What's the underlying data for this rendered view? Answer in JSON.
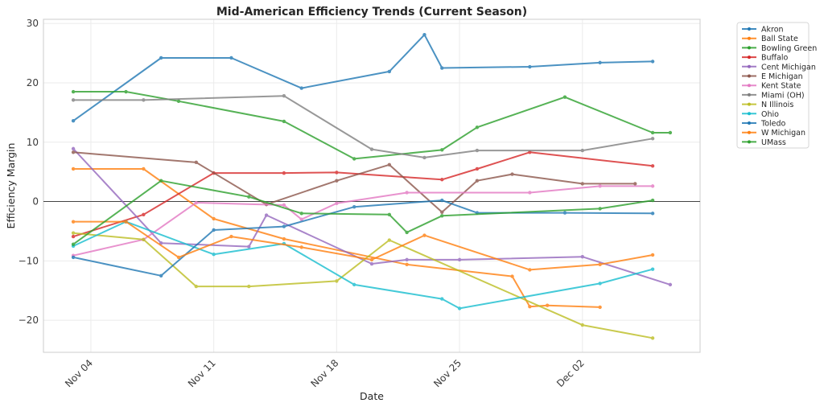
{
  "chart_data": {
    "type": "line",
    "title": "Mid-American Efficiency Trends (Current Season)",
    "xlabel": "Date",
    "ylabel": "Efficiency Margin",
    "x_ticks": [
      "Nov 04",
      "Nov 11",
      "Nov 18",
      "Nov 25",
      "Dec 02"
    ],
    "x_tick_days": [
      4,
      11,
      18,
      25,
      32
    ],
    "x_day_origin": "Nov 00",
    "xlim_days": [
      1.3,
      38.7
    ],
    "y_ticks": [
      -20,
      -10,
      0,
      10,
      20,
      30
    ],
    "ylim": [
      -25.4,
      30.7
    ],
    "grid": true,
    "reference_line_y": 0,
    "legend_position": "outside-right-top",
    "series": [
      {
        "name": "Akron",
        "color": "#1f77b4",
        "x": [
          "Nov 03",
          "Nov 08",
          "Nov 12",
          "Nov 16",
          "Nov 21",
          "Nov 23",
          "Nov 24",
          "Nov 29",
          "Dec 03",
          "Dec 06"
        ],
        "days": [
          3,
          8,
          12,
          16,
          21,
          23,
          24,
          29,
          33,
          36
        ],
        "values": [
          13.6,
          24.2,
          24.2,
          19.1,
          21.9,
          28.1,
          22.5,
          22.7,
          23.4,
          23.6
        ]
      },
      {
        "name": "Ball State",
        "color": "#ff7f0e",
        "x": [
          "Nov 03",
          "Nov 07",
          "Nov 11",
          "Nov 15",
          "Nov 22",
          "Nov 28",
          "Nov 29",
          "Nov 30",
          "Dec 03"
        ],
        "days": [
          3,
          7,
          11,
          15,
          22,
          28,
          29,
          30,
          33
        ],
        "values": [
          5.5,
          5.5,
          -2.9,
          -6.3,
          -10.6,
          -12.6,
          -17.7,
          -17.5,
          -17.8
        ]
      },
      {
        "name": "Bowling Green",
        "color": "#2ca02c",
        "x": [
          "Nov 03",
          "Nov 06",
          "Nov 09",
          "Nov 15",
          "Nov 19",
          "Nov 24",
          "Nov 26",
          "Dec 01",
          "Dec 06",
          "Dec 07"
        ],
        "days": [
          3,
          6,
          9,
          15,
          19,
          24,
          26,
          31,
          36,
          37
        ],
        "values": [
          18.5,
          18.5,
          16.9,
          13.5,
          7.2,
          8.7,
          12.5,
          17.6,
          11.6,
          11.6
        ]
      },
      {
        "name": "Buffalo",
        "color": "#d62728",
        "x": [
          "Nov 03",
          "Nov 07",
          "Nov 11",
          "Nov 15",
          "Nov 18",
          "Nov 24",
          "Nov 26",
          "Nov 29",
          "Dec 06"
        ],
        "days": [
          3,
          7,
          11,
          15,
          18,
          24,
          26,
          29,
          36
        ],
        "values": [
          -5.9,
          -2.2,
          4.8,
          4.8,
          4.9,
          3.7,
          5.5,
          8.3,
          6.0
        ]
      },
      {
        "name": "Cent Michigan",
        "color": "#9467bd",
        "x": [
          "Nov 03",
          "Nov 08",
          "Nov 13",
          "Nov 14",
          "Nov 20",
          "Nov 22",
          "Nov 25",
          "Dec 02",
          "Dec 07"
        ],
        "days": [
          3,
          8,
          13,
          14,
          20,
          22,
          25,
          32,
          37
        ],
        "values": [
          8.9,
          -7.0,
          -7.6,
          -2.3,
          -10.5,
          -9.8,
          -9.8,
          -9.3,
          -14.0
        ]
      },
      {
        "name": "E Michigan",
        "color": "#8c564b",
        "x": [
          "Nov 03",
          "Nov 10",
          "Nov 14",
          "Nov 18",
          "Nov 21",
          "Nov 24",
          "Nov 26",
          "Nov 28",
          "Dec 02",
          "Dec 05"
        ],
        "days": [
          3,
          10,
          14,
          18,
          21,
          24,
          26,
          28,
          32,
          35
        ],
        "values": [
          8.3,
          6.6,
          -0.5,
          3.5,
          6.2,
          -1.8,
          3.5,
          4.6,
          3.0,
          3.0
        ]
      },
      {
        "name": "Kent State",
        "color": "#e377c2",
        "x": [
          "Nov 03",
          "Nov 07",
          "Nov 10",
          "Nov 15",
          "Nov 16",
          "Nov 18",
          "Nov 22",
          "Nov 29",
          "Dec 03",
          "Dec 06"
        ],
        "days": [
          3,
          7,
          10,
          15,
          16,
          18,
          22,
          29,
          33,
          36
        ],
        "values": [
          -9.1,
          -6.4,
          -0.2,
          -0.6,
          -3.0,
          -0.3,
          1.5,
          1.5,
          2.6,
          2.6
        ]
      },
      {
        "name": "Miami (OH)",
        "color": "#7f7f7f",
        "x": [
          "Nov 03",
          "Nov 07",
          "Nov 15",
          "Nov 20",
          "Nov 23",
          "Nov 26",
          "Dec 02",
          "Dec 06"
        ],
        "days": [
          3,
          7,
          15,
          20,
          23,
          26,
          32,
          36
        ],
        "values": [
          17.1,
          17.1,
          17.8,
          8.8,
          7.4,
          8.6,
          8.6,
          10.6
        ]
      },
      {
        "name": "N Illinois",
        "color": "#bcbd22",
        "x": [
          "Nov 03",
          "Nov 07",
          "Nov 10",
          "Nov 13",
          "Nov 18",
          "Nov 21",
          "Dec 02",
          "Dec 06"
        ],
        "days": [
          3,
          7,
          10,
          13,
          18,
          21,
          32,
          36
        ],
        "values": [
          -5.3,
          -6.4,
          -14.3,
          -14.3,
          -13.4,
          -6.5,
          -20.8,
          -23.0
        ]
      },
      {
        "name": "Ohio",
        "color": "#17becf",
        "x": [
          "Nov 03",
          "Nov 06",
          "Nov 11",
          "Nov 15",
          "Nov 19",
          "Nov 24",
          "Nov 25",
          "Dec 03",
          "Dec 06"
        ],
        "days": [
          3,
          6,
          11,
          15,
          19,
          24,
          25,
          33,
          36
        ],
        "values": [
          -7.5,
          -3.4,
          -8.9,
          -7.1,
          -14.0,
          -16.4,
          -18.0,
          -13.8,
          -11.4
        ]
      },
      {
        "name": "Toledo",
        "color": "#1f77b4",
        "x": [
          "Nov 03",
          "Nov 08",
          "Nov 11",
          "Nov 15",
          "Nov 19",
          "Nov 24",
          "Nov 26",
          "Dec 01",
          "Dec 06"
        ],
        "days": [
          3,
          8,
          11,
          15,
          19,
          24,
          26,
          31,
          36
        ],
        "values": [
          -9.4,
          -12.5,
          -4.8,
          -4.2,
          -0.9,
          0.2,
          -1.9,
          -1.9,
          -2.0
        ]
      },
      {
        "name": "W Michigan",
        "color": "#ff7f0e",
        "x": [
          "Nov 03",
          "Nov 06",
          "Nov 09",
          "Nov 12",
          "Nov 16",
          "Nov 20",
          "Nov 23",
          "Nov 29",
          "Dec 03",
          "Dec 06"
        ],
        "days": [
          3,
          6,
          9,
          12,
          16,
          20,
          23,
          29,
          33,
          36
        ],
        "values": [
          -3.4,
          -3.4,
          -9.4,
          -5.9,
          -7.7,
          -9.8,
          -5.7,
          -11.5,
          -10.6,
          -9.0
        ]
      },
      {
        "name": "UMass",
        "color": "#2ca02c",
        "x": [
          "Nov 03",
          "Nov 08",
          "Nov 13",
          "Nov 16",
          "Nov 21",
          "Nov 22",
          "Nov 24",
          "Dec 03",
          "Dec 06"
        ],
        "days": [
          3,
          8,
          13,
          16,
          21,
          22,
          24,
          33,
          36
        ],
        "values": [
          -7.2,
          3.5,
          0.8,
          -2.0,
          -2.2,
          -5.2,
          -2.4,
          -1.2,
          0.2
        ]
      }
    ]
  }
}
